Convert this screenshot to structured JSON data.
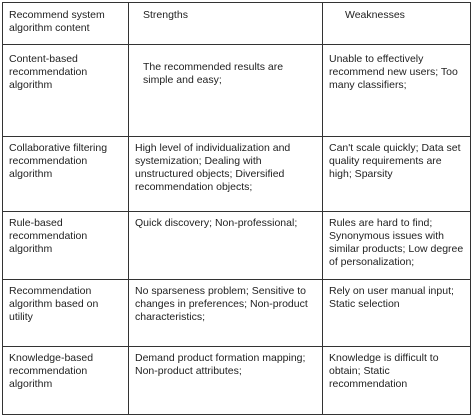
{
  "table": {
    "headers": [
      "Recommend system algorithm content",
      "Strengths",
      "Weaknesses"
    ],
    "rows": [
      {
        "algorithm": "Content-based recommendation algorithm",
        "strengths": "The recommended results are simple and easy;",
        "weaknesses": "Unable to effectively recommend new users; Too many classifiers;"
      },
      {
        "algorithm": "Collaborative filtering recommendation algorithm",
        "strengths": "High level of individualization and systemization; Dealing with unstructured objects; Diversified recommendation objects;",
        "weaknesses": "Can't scale quickly; Data set quality requirements are high; Sparsity"
      },
      {
        "algorithm": "Rule-based recommendation algorithm",
        "strengths": "Quick discovery; Non-professional;",
        "weaknesses": "Rules are hard to find; Synonymous issues with similar products; Low degree of personalization;"
      },
      {
        "algorithm": "Recommendation algorithm based on utility",
        "strengths": "No sparseness problem; Sensitive to changes in preferences; Non-product characteristics;",
        "weaknesses": "Rely on user manual input; Static selection"
      },
      {
        "algorithm": "Knowledge-based recommendation algorithm",
        "strengths": "Demand product formation mapping; Non-product attributes;",
        "weaknesses": "Knowledge is difficult to obtain; Static recommendation"
      }
    ]
  }
}
